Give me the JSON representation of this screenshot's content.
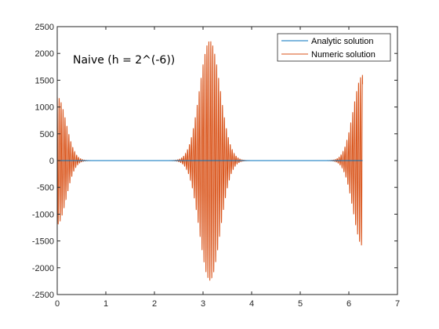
{
  "chart_data": {
    "type": "line",
    "title": "",
    "xlabel": "",
    "ylabel": "",
    "xlim": [
      0,
      7
    ],
    "ylim": [
      -2500,
      2500
    ],
    "x_ticks": [
      0,
      1,
      2,
      3,
      4,
      5,
      6,
      7
    ],
    "y_ticks": [
      -2500,
      -2000,
      -1500,
      -1000,
      -500,
      0,
      500,
      1000,
      1500,
      2000,
      2500
    ],
    "x_tick_labels": [
      "0",
      "1",
      "2",
      "3",
      "4",
      "5",
      "6",
      "7"
    ],
    "y_tick_labels": [
      "-2500",
      "-2000",
      "-1500",
      "-1000",
      "-500",
      "0",
      "500",
      "1000",
      "1500",
      "2000",
      "2500"
    ],
    "grid": false,
    "legend_position": "top-right",
    "annotation": "Naive (h = 2^(-6))",
    "series": [
      {
        "name": "Analytic solution",
        "color": "#0072BD",
        "x_range": [
          0,
          6.283
        ],
        "values_description_free": true,
        "constant": 0
      },
      {
        "name": "Numeric solution",
        "color": "#D95319",
        "x_range": [
          0,
          6.283
        ],
        "oscillation_frequency": 25,
        "bursts": [
          {
            "center": 0.0,
            "peak": 1200,
            "decay": 0.18
          },
          {
            "center": 3.14,
            "peak": 2240,
            "decay": 0.21
          },
          {
            "center": 6.283,
            "peak": 1600,
            "decay": 0.19
          }
        ]
      }
    ]
  }
}
